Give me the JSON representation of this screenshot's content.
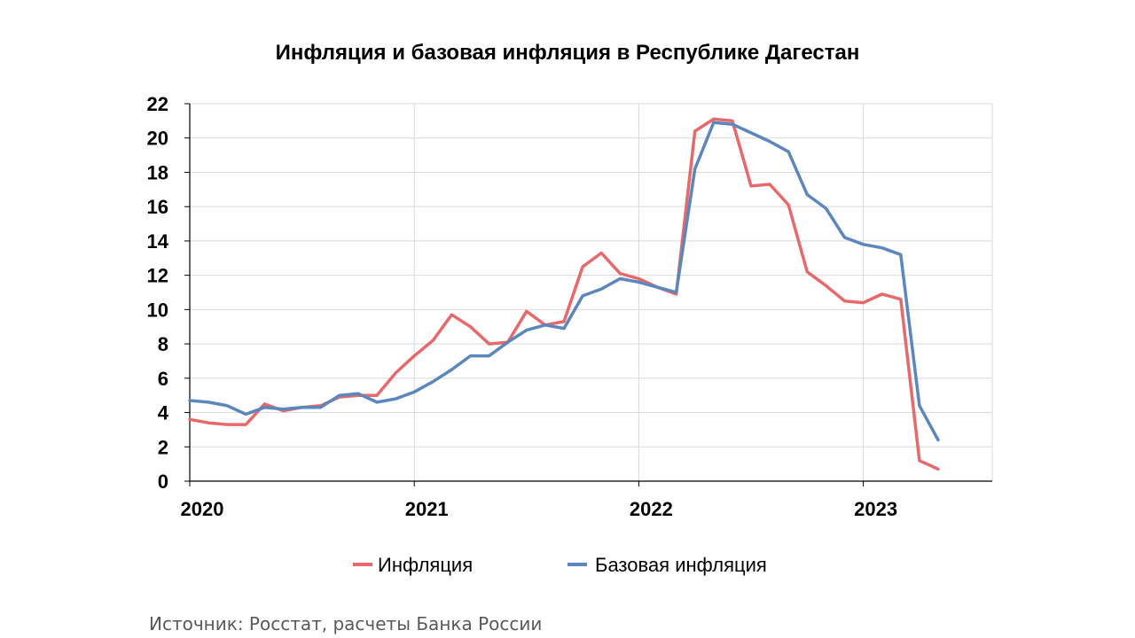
{
  "chart_data": {
    "type": "line",
    "title": "Инфляция и базовая инфляция в Республике Дагестан",
    "xlabel": "",
    "ylabel": "",
    "ylim": [
      0,
      22
    ],
    "yticks": [
      "0",
      "2",
      "4",
      "6",
      "8",
      "10",
      "12",
      "14",
      "16",
      "18",
      "20",
      "22"
    ],
    "xticks": [
      "2020",
      "2021",
      "2022",
      "2023"
    ],
    "grid": true,
    "legend": "bottom",
    "x": [
      "2020-01",
      "2020-02",
      "2020-03",
      "2020-04",
      "2020-05",
      "2020-06",
      "2020-07",
      "2020-08",
      "2020-09",
      "2020-10",
      "2020-11",
      "2020-12",
      "2021-01",
      "2021-02",
      "2021-03",
      "2021-04",
      "2021-05",
      "2021-06",
      "2021-07",
      "2021-08",
      "2021-09",
      "2021-10",
      "2021-11",
      "2021-12",
      "2022-01",
      "2022-02",
      "2022-03",
      "2022-04",
      "2022-05",
      "2022-06",
      "2022-07",
      "2022-08",
      "2022-09",
      "2022-10",
      "2022-11",
      "2022-12",
      "2023-01",
      "2023-02",
      "2023-03",
      "2023-04",
      "2023-05"
    ],
    "series": [
      {
        "name": "Инфляция",
        "color": "#E8696B",
        "values": [
          3.6,
          3.4,
          3.3,
          3.3,
          4.5,
          4.1,
          4.3,
          4.4,
          4.9,
          5.0,
          5.0,
          6.3,
          7.3,
          8.2,
          9.7,
          9.0,
          8.0,
          8.1,
          9.9,
          9.1,
          9.3,
          12.5,
          13.3,
          12.1,
          11.8,
          11.3,
          10.9,
          20.4,
          21.1,
          21.0,
          17.2,
          17.3,
          16.1,
          12.2,
          11.4,
          10.5,
          10.4,
          10.9,
          10.6,
          1.2,
          0.7
        ]
      },
      {
        "name": "Базовая инфляция",
        "color": "#5B87BD",
        "values": [
          4.7,
          4.6,
          4.4,
          3.9,
          4.3,
          4.2,
          4.3,
          4.3,
          5.0,
          5.1,
          4.6,
          4.8,
          5.2,
          5.8,
          6.5,
          7.3,
          7.3,
          8.1,
          8.8,
          9.1,
          8.9,
          10.8,
          11.2,
          11.8,
          11.6,
          11.3,
          11.0,
          18.2,
          20.9,
          20.8,
          20.3,
          19.8,
          19.2,
          16.7,
          15.9,
          14.2,
          13.8,
          13.6,
          13.2,
          4.4,
          2.4
        ]
      }
    ]
  },
  "source": "Источник: Росстат, расчеты Банка России"
}
